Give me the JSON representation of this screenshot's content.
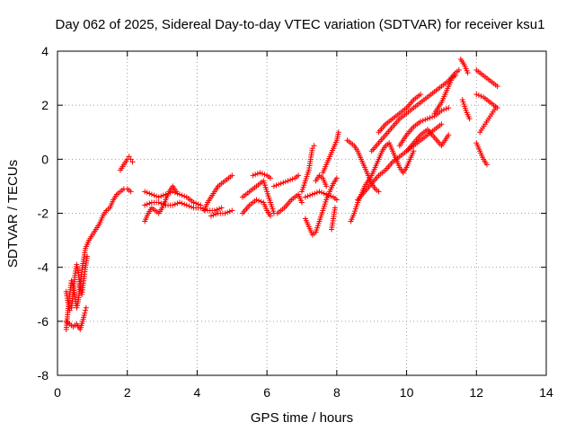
{
  "chart_data": {
    "type": "scatter",
    "title": "Day 062 of 2025, Sidereal Day-to-day VTEC variation (SDTVAR) for receiver ksu1",
    "xlabel": "GPS time / hours",
    "ylabel": "SDTVAR / TECUs",
    "xlim": [
      0,
      14
    ],
    "ylim": [
      -8,
      4
    ],
    "xticks": [
      "0",
      "2",
      "4",
      "6",
      "8",
      "10",
      "12",
      "14"
    ],
    "yticks": [
      "-8",
      "-6",
      "-4",
      "-2",
      "0",
      "2",
      "4"
    ],
    "grid": true,
    "marker": "+",
    "color": "#ff0000",
    "series": [
      {
        "name": "SDTVAR",
        "segments": [
          [
            [
              0.25,
              -6.3
            ],
            [
              0.3,
              -5.6
            ],
            [
              0.35,
              -5.0
            ],
            [
              0.4,
              -4.5
            ],
            [
              0.45,
              -4.7
            ],
            [
              0.5,
              -5.1
            ],
            [
              0.55,
              -5.5
            ],
            [
              0.6,
              -5.2
            ],
            [
              0.65,
              -4.6
            ],
            [
              0.7,
              -4.1
            ],
            [
              0.75,
              -3.7
            ],
            [
              0.8,
              -3.3
            ],
            [
              0.9,
              -3.0
            ],
            [
              1.0,
              -2.8
            ],
            [
              1.1,
              -2.6
            ],
            [
              1.2,
              -2.4
            ],
            [
              1.3,
              -2.1
            ],
            [
              1.4,
              -1.9
            ],
            [
              1.5,
              -1.8
            ],
            [
              1.6,
              -1.5
            ],
            [
              1.7,
              -1.3
            ],
            [
              1.8,
              -1.2
            ],
            [
              1.9,
              -1.1
            ],
            [
              2.0,
              -1.1
            ],
            [
              2.1,
              -1.2
            ]
          ],
          [
            [
              0.25,
              -4.9
            ],
            [
              0.3,
              -5.3
            ],
            [
              0.35,
              -5.6
            ],
            [
              0.4,
              -5.5
            ],
            [
              0.45,
              -5.0
            ],
            [
              0.5,
              -4.3
            ],
            [
              0.55,
              -3.9
            ],
            [
              0.6,
              -4.2
            ],
            [
              0.65,
              -4.7
            ],
            [
              0.7,
              -5.0
            ],
            [
              0.75,
              -4.5
            ],
            [
              0.8,
              -4.0
            ],
            [
              0.85,
              -3.6
            ]
          ],
          [
            [
              0.25,
              -6.0
            ],
            [
              0.35,
              -6.1
            ],
            [
              0.45,
              -6.2
            ],
            [
              0.55,
              -6.1
            ],
            [
              0.65,
              -6.3
            ],
            [
              0.72,
              -6.0
            ],
            [
              0.78,
              -5.7
            ],
            [
              0.82,
              -5.5
            ]
          ],
          [
            [
              1.8,
              -0.4
            ],
            [
              1.9,
              -0.2
            ],
            [
              2.0,
              0.0
            ],
            [
              2.05,
              0.1
            ],
            [
              2.1,
              0.0
            ],
            [
              2.15,
              -0.1
            ]
          ],
          [
            [
              2.5,
              -1.7
            ],
            [
              2.7,
              -1.6
            ],
            [
              2.9,
              -1.6
            ],
            [
              3.1,
              -1.7
            ],
            [
              3.3,
              -1.7
            ],
            [
              3.5,
              -1.6
            ],
            [
              3.7,
              -1.7
            ],
            [
              3.9,
              -1.8
            ],
            [
              4.1,
              -1.8
            ],
            [
              4.3,
              -1.9
            ],
            [
              4.5,
              -1.9
            ],
            [
              4.7,
              -1.8
            ]
          ],
          [
            [
              2.5,
              -1.2
            ],
            [
              2.7,
              -1.3
            ],
            [
              2.9,
              -1.4
            ],
            [
              3.1,
              -1.3
            ],
            [
              3.3,
              -1.2
            ],
            [
              3.5,
              -1.3
            ],
            [
              3.7,
              -1.4
            ],
            [
              3.9,
              -1.6
            ],
            [
              4.1,
              -1.7
            ]
          ],
          [
            [
              2.5,
              -2.3
            ],
            [
              2.6,
              -2.0
            ],
            [
              2.7,
              -1.8
            ],
            [
              2.8,
              -1.9
            ],
            [
              2.9,
              -2.0
            ],
            [
              3.0,
              -1.8
            ],
            [
              3.1,
              -1.5
            ],
            [
              3.2,
              -1.2
            ],
            [
              3.3,
              -1.0
            ],
            [
              3.4,
              -1.2
            ]
          ],
          [
            [
              4.2,
              -1.9
            ],
            [
              4.3,
              -1.6
            ],
            [
              4.4,
              -1.4
            ],
            [
              4.5,
              -1.2
            ],
            [
              4.6,
              -1.0
            ],
            [
              4.7,
              -0.9
            ],
            [
              4.8,
              -0.8
            ],
            [
              4.9,
              -0.7
            ],
            [
              5.0,
              -0.6
            ]
          ],
          [
            [
              4.4,
              -2.1
            ],
            [
              4.6,
              -2.0
            ],
            [
              4.8,
              -2.0
            ],
            [
              5.0,
              -1.9
            ]
          ],
          [
            [
              5.3,
              -1.4
            ],
            [
              5.5,
              -1.2
            ],
            [
              5.7,
              -1.0
            ],
            [
              5.9,
              -0.8
            ],
            [
              6.0,
              -1.2
            ],
            [
              6.1,
              -1.6
            ],
            [
              6.2,
              -2.0
            ]
          ],
          [
            [
              5.3,
              -2.0
            ],
            [
              5.5,
              -1.7
            ],
            [
              5.7,
              -1.5
            ],
            [
              5.9,
              -1.6
            ],
            [
              6.0,
              -1.9
            ],
            [
              6.1,
              -2.1
            ]
          ],
          [
            [
              5.6,
              -0.6
            ],
            [
              5.8,
              -0.5
            ],
            [
              6.0,
              -0.6
            ],
            [
              6.1,
              -0.7
            ]
          ],
          [
            [
              6.2,
              -1.0
            ],
            [
              6.4,
              -0.9
            ],
            [
              6.6,
              -0.8
            ],
            [
              6.8,
              -0.7
            ],
            [
              6.9,
              -0.6
            ]
          ],
          [
            [
              6.3,
              -2.0
            ],
            [
              6.5,
              -1.8
            ],
            [
              6.7,
              -1.5
            ],
            [
              6.9,
              -1.3
            ],
            [
              7.0,
              -1.6
            ]
          ],
          [
            [
              7.0,
              -1.2
            ],
            [
              7.1,
              -0.8
            ],
            [
              7.2,
              -0.4
            ],
            [
              7.25,
              0.0
            ],
            [
              7.3,
              0.4
            ],
            [
              7.35,
              0.5
            ]
          ],
          [
            [
              7.1,
              -2.2
            ],
            [
              7.2,
              -2.5
            ],
            [
              7.3,
              -2.8
            ],
            [
              7.4,
              -2.7
            ],
            [
              7.5,
              -2.3
            ],
            [
              7.6,
              -1.9
            ],
            [
              7.7,
              -1.5
            ],
            [
              7.8,
              -1.2
            ],
            [
              7.9,
              -0.9
            ],
            [
              8.0,
              -0.7
            ]
          ],
          [
            [
              7.1,
              -1.4
            ],
            [
              7.3,
              -1.3
            ],
            [
              7.5,
              -1.2
            ],
            [
              7.7,
              -1.3
            ],
            [
              7.9,
              -1.4
            ],
            [
              8.0,
              -1.5
            ]
          ],
          [
            [
              7.6,
              -0.5
            ],
            [
              7.7,
              -0.2
            ],
            [
              7.8,
              0.1
            ],
            [
              7.9,
              0.4
            ],
            [
              8.0,
              0.7
            ],
            [
              8.05,
              1.0
            ]
          ],
          [
            [
              7.4,
              -0.8
            ],
            [
              7.5,
              -0.6
            ],
            [
              7.6,
              -0.7
            ],
            [
              7.7,
              -1.0
            ]
          ],
          [
            [
              7.85,
              -2.6
            ],
            [
              7.9,
              -2.2
            ],
            [
              7.95,
              -1.8
            ]
          ],
          [
            [
              8.4,
              -2.3
            ],
            [
              8.5,
              -2.0
            ],
            [
              8.6,
              -1.6
            ],
            [
              8.7,
              -1.3
            ],
            [
              8.8,
              -1.0
            ],
            [
              8.9,
              -0.8
            ],
            [
              9.0,
              -0.6
            ],
            [
              9.1,
              -0.3
            ],
            [
              9.2,
              0.0
            ],
            [
              9.3,
              0.3
            ],
            [
              9.4,
              0.5
            ],
            [
              9.5,
              0.6
            ],
            [
              9.6,
              0.3
            ],
            [
              9.7,
              0.0
            ],
            [
              9.8,
              -0.3
            ],
            [
              9.9,
              -0.5
            ],
            [
              10.0,
              -0.3
            ],
            [
              10.1,
              0.0
            ],
            [
              10.2,
              0.3
            ]
          ],
          [
            [
              8.3,
              0.7
            ],
            [
              8.4,
              0.6
            ],
            [
              8.5,
              0.5
            ],
            [
              8.6,
              0.3
            ],
            [
              8.7,
              0.0
            ],
            [
              8.8,
              -0.3
            ],
            [
              8.9,
              -0.6
            ],
            [
              9.0,
              -0.9
            ],
            [
              9.1,
              -1.1
            ],
            [
              9.2,
              -1.2
            ]
          ],
          [
            [
              8.6,
              -1.5
            ],
            [
              8.8,
              -1.2
            ],
            [
              9.0,
              -0.9
            ],
            [
              9.2,
              -0.6
            ],
            [
              9.4,
              -0.4
            ],
            [
              9.6,
              -0.1
            ],
            [
              9.8,
              0.1
            ],
            [
              10.0,
              0.3
            ],
            [
              10.2,
              0.5
            ],
            [
              10.4,
              0.7
            ],
            [
              10.6,
              0.9
            ],
            [
              10.8,
              1.1
            ],
            [
              11.0,
              1.3
            ]
          ],
          [
            [
              9.0,
              0.3
            ],
            [
              9.2,
              0.6
            ],
            [
              9.4,
              0.9
            ],
            [
              9.6,
              1.2
            ],
            [
              9.8,
              1.5
            ],
            [
              10.0,
              1.7
            ],
            [
              10.2,
              1.9
            ],
            [
              10.4,
              2.1
            ],
            [
              10.6,
              2.3
            ],
            [
              10.8,
              2.5
            ],
            [
              11.0,
              2.7
            ],
            [
              11.2,
              2.9
            ],
            [
              11.4,
              3.2
            ],
            [
              11.5,
              3.3
            ]
          ],
          [
            [
              9.2,
              1.0
            ],
            [
              9.4,
              1.3
            ],
            [
              9.6,
              1.5
            ],
            [
              9.8,
              1.7
            ],
            [
              10.0,
              1.9
            ],
            [
              10.2,
              2.2
            ],
            [
              10.4,
              2.4
            ]
          ],
          [
            [
              9.8,
              0.5
            ],
            [
              10.0,
              0.9
            ],
            [
              10.2,
              1.2
            ],
            [
              10.4,
              1.4
            ],
            [
              10.6,
              1.5
            ],
            [
              10.8,
              1.6
            ],
            [
              11.0,
              1.8
            ],
            [
              11.2,
              1.9
            ]
          ],
          [
            [
              10.0,
              0.3
            ],
            [
              10.2,
              0.6
            ],
            [
              10.4,
              0.9
            ],
            [
              10.6,
              1.1
            ],
            [
              10.8,
              0.8
            ],
            [
              11.0,
              0.5
            ],
            [
              11.2,
              0.9
            ]
          ],
          [
            [
              10.8,
              1.7
            ],
            [
              10.9,
              1.9
            ],
            [
              11.0,
              2.1
            ],
            [
              11.1,
              2.4
            ],
            [
              11.2,
              2.7
            ],
            [
              11.3,
              3.0
            ],
            [
              11.4,
              3.1
            ]
          ],
          [
            [
              11.55,
              3.7
            ],
            [
              11.65,
              3.5
            ],
            [
              11.75,
              3.2
            ]
          ],
          [
            [
              11.6,
              2.2
            ],
            [
              11.7,
              1.8
            ],
            [
              11.8,
              1.5
            ]
          ],
          [
            [
              12.0,
              3.3
            ],
            [
              12.2,
              3.1
            ],
            [
              12.4,
              2.9
            ],
            [
              12.6,
              2.7
            ]
          ],
          [
            [
              12.0,
              2.4
            ],
            [
              12.2,
              2.3
            ],
            [
              12.4,
              2.1
            ],
            [
              12.6,
              1.9
            ]
          ],
          [
            [
              12.1,
              1.0
            ],
            [
              12.25,
              1.3
            ],
            [
              12.4,
              1.6
            ],
            [
              12.55,
              1.9
            ]
          ],
          [
            [
              12.0,
              0.6
            ],
            [
              12.1,
              0.3
            ],
            [
              12.2,
              0.0
            ],
            [
              12.3,
              -0.2
            ]
          ]
        ]
      }
    ]
  }
}
